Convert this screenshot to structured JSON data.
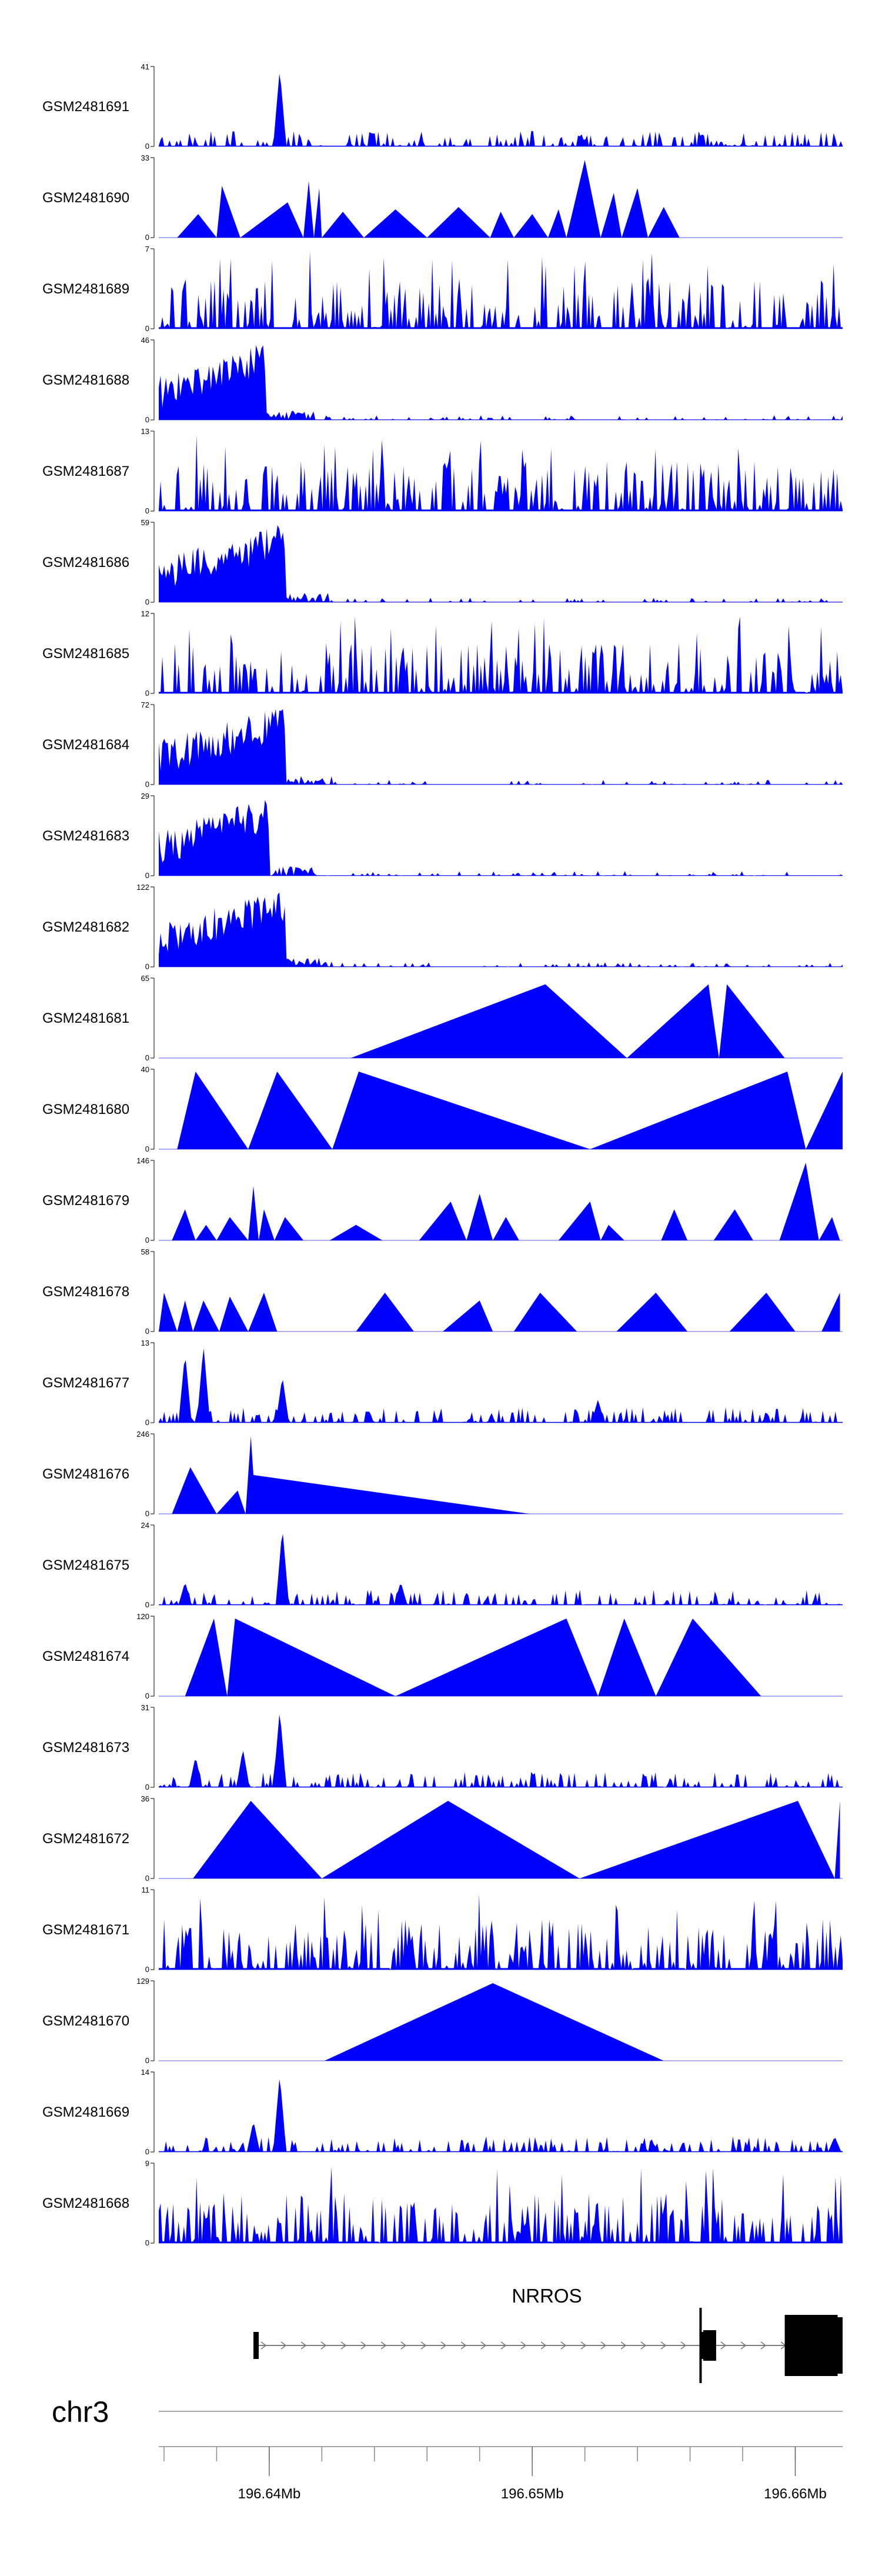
{
  "chart_data": {
    "type": "area",
    "title": "",
    "chromosome": "chr3",
    "xlim_mb": [
      196.6358,
      196.6618
    ],
    "fill_color": "#0000ff",
    "tracks": [
      {
        "name": "GSM2481691",
        "ymax": 41,
        "ymin": 0,
        "style": "sparse",
        "peaks": [
          [
            196.6404,
            1.0
          ]
        ]
      },
      {
        "name": "GSM2481690",
        "ymax": 33,
        "ymin": 0,
        "style": "triangles",
        "points": [
          [
            196.6365,
            0
          ],
          [
            196.6373,
            10
          ],
          [
            196.638,
            0
          ],
          [
            196.6382,
            22
          ],
          [
            196.6389,
            0
          ],
          [
            196.6407,
            15
          ],
          [
            196.6413,
            0
          ],
          [
            196.6415,
            24
          ],
          [
            196.6417,
            0
          ],
          [
            196.6419,
            21
          ],
          [
            196.642,
            0
          ],
          [
            196.6428,
            11
          ],
          [
            196.6436,
            0
          ],
          [
            196.6448,
            12
          ],
          [
            196.646,
            0
          ],
          [
            196.6472,
            13
          ],
          [
            196.6484,
            0
          ],
          [
            196.6488,
            11
          ],
          [
            196.6493,
            0
          ],
          [
            196.65,
            10
          ],
          [
            196.6506,
            0
          ],
          [
            196.651,
            12
          ],
          [
            196.6513,
            0
          ],
          [
            196.652,
            33
          ],
          [
            196.6526,
            0
          ],
          [
            196.6531,
            19
          ],
          [
            196.6534,
            0
          ],
          [
            196.654,
            21
          ],
          [
            196.6544,
            0
          ],
          [
            196.655,
            13
          ],
          [
            196.6556,
            0
          ],
          [
            196.6577,
            0
          ]
        ]
      },
      {
        "name": "GSM2481689",
        "ymax": 7,
        "ymin": 0,
        "style": "spiky"
      },
      {
        "name": "GSM2481688",
        "ymax": 46,
        "ymin": 0,
        "style": "dense-left",
        "peaks": [
          [
            196.6395,
            1.0
          ]
        ]
      },
      {
        "name": "GSM2481687",
        "ymax": 13,
        "ymin": 0,
        "style": "spiky"
      },
      {
        "name": "GSM2481686",
        "ymax": 59,
        "ymin": 0,
        "style": "dense-left",
        "peaks": [
          [
            196.6402,
            1.0
          ]
        ]
      },
      {
        "name": "GSM2481685",
        "ymax": 12,
        "ymin": 0,
        "style": "spiky"
      },
      {
        "name": "GSM2481684",
        "ymax": 72,
        "ymin": 0,
        "style": "dense-left",
        "peaks": [
          [
            196.6402,
            1.0
          ]
        ]
      },
      {
        "name": "GSM2481683",
        "ymax": 29,
        "ymin": 0,
        "style": "dense-left",
        "peaks": [
          [
            196.6396,
            0.8
          ]
        ]
      },
      {
        "name": "GSM2481682",
        "ymax": 122,
        "ymin": 0,
        "style": "dense-left",
        "peaks": [
          [
            196.6402,
            1.0
          ]
        ]
      },
      {
        "name": "GSM2481681",
        "ymax": 65,
        "ymin": 0,
        "style": "triangles",
        "points": [
          [
            196.6431,
            0
          ],
          [
            196.6505,
            0.95
          ],
          [
            196.6536,
            0
          ],
          [
            196.6567,
            0.95
          ],
          [
            196.6571,
            0
          ],
          [
            196.6574,
            0.95
          ],
          [
            196.6596,
            0
          ]
        ]
      },
      {
        "name": "GSM2481680",
        "ymax": 40,
        "ymin": 0,
        "style": "triangles",
        "points": [
          [
            196.6365,
            0
          ],
          [
            196.6372,
            1
          ],
          [
            196.6392,
            0
          ],
          [
            196.6403,
            1
          ],
          [
            196.6424,
            0
          ],
          [
            196.6434,
            1
          ],
          [
            196.6522,
            0
          ],
          [
            196.6597,
            1
          ],
          [
            196.6604,
            0
          ],
          [
            196.6618,
            1
          ]
        ]
      },
      {
        "name": "GSM2481679",
        "ymax": 146,
        "ymin": 0,
        "style": "triangles",
        "points": [
          [
            196.6363,
            0
          ],
          [
            196.6368,
            0.4
          ],
          [
            196.6372,
            0
          ],
          [
            196.6376,
            0.2
          ],
          [
            196.638,
            0
          ],
          [
            196.6385,
            0.3
          ],
          [
            196.6392,
            0
          ],
          [
            196.6394,
            0.7
          ],
          [
            196.6396,
            0
          ],
          [
            196.6398,
            0.4
          ],
          [
            196.6402,
            0
          ],
          [
            196.6406,
            0.3
          ],
          [
            196.6413,
            0
          ],
          [
            196.6423,
            0
          ],
          [
            196.6433,
            0.2
          ],
          [
            196.6443,
            0
          ],
          [
            196.6457,
            0
          ],
          [
            196.6469,
            0.5
          ],
          [
            196.6475,
            0
          ],
          [
            196.648,
            0.6
          ],
          [
            196.6485,
            0
          ],
          [
            196.649,
            0.3
          ],
          [
            196.6495,
            0
          ],
          [
            196.651,
            0
          ],
          [
            196.6522,
            0.5
          ],
          [
            196.6526,
            0
          ],
          [
            196.6529,
            0.2
          ],
          [
            196.6535,
            0
          ],
          [
            196.6549,
            0
          ],
          [
            196.6554,
            0.4
          ],
          [
            196.6559,
            0
          ],
          [
            196.6569,
            0
          ],
          [
            196.6577,
            0.4
          ],
          [
            196.6584,
            0
          ],
          [
            196.6594,
            0
          ],
          [
            196.6604,
            1.0
          ],
          [
            196.6609,
            0
          ],
          [
            196.6614,
            0.3
          ],
          [
            196.6617,
            0
          ]
        ]
      },
      {
        "name": "GSM2481678",
        "ymax": 58,
        "ymin": 0,
        "style": "triangles",
        "points": [
          [
            196.6358,
            0
          ],
          [
            196.636,
            0.5
          ],
          [
            196.6365,
            0
          ],
          [
            196.6368,
            0.4
          ],
          [
            196.6371,
            0
          ],
          [
            196.6375,
            0.4
          ],
          [
            196.6381,
            0
          ],
          [
            196.6385,
            0.45
          ],
          [
            196.6392,
            0
          ],
          [
            196.6398,
            0.5
          ],
          [
            196.6403,
            0
          ],
          [
            196.6414,
            0
          ],
          [
            196.6433,
            0
          ],
          [
            196.6444,
            0.5
          ],
          [
            196.6455,
            0
          ],
          [
            196.6466,
            0
          ],
          [
            196.648,
            0.4
          ],
          [
            196.6485,
            0
          ],
          [
            196.6493,
            0
          ],
          [
            196.6503,
            0.5
          ],
          [
            196.6517,
            0
          ],
          [
            196.6532,
            0
          ],
          [
            196.6547,
            0.5
          ],
          [
            196.6559,
            0
          ],
          [
            196.6575,
            0
          ],
          [
            196.6589,
            0.5
          ],
          [
            196.66,
            0
          ],
          [
            196.661,
            0
          ],
          [
            196.6617,
            0.5
          ]
        ]
      },
      {
        "name": "GSM2481677",
        "ymax": 13,
        "ymin": 0,
        "style": "sparse",
        "peaks": [
          [
            196.6368,
            0.9
          ],
          [
            196.6375,
            1.0
          ],
          [
            196.6405,
            0.6
          ],
          [
            196.6525,
            0.3
          ]
        ]
      },
      {
        "name": "GSM2481676",
        "ymax": 246,
        "ymin": 0,
        "style": "triangles",
        "points": [
          [
            196.6363,
            0
          ],
          [
            196.637,
            0.6
          ],
          [
            196.638,
            0
          ],
          [
            196.6388,
            0.3
          ],
          [
            196.6391,
            0
          ],
          [
            196.6393,
            1.0
          ],
          [
            196.6394,
            0.5
          ],
          [
            196.6499,
            0
          ]
        ]
      },
      {
        "name": "GSM2481675",
        "ymax": 24,
        "ymin": 0,
        "style": "sparse",
        "peaks": [
          [
            196.6368,
            0.3
          ],
          [
            196.6405,
            1.0
          ],
          [
            196.645,
            0.3
          ]
        ]
      },
      {
        "name": "GSM2481674",
        "ymax": 120,
        "ymin": 0,
        "style": "triangles",
        "points": [
          [
            196.6368,
            0
          ],
          [
            196.6379,
            1
          ],
          [
            196.6384,
            0
          ],
          [
            196.6387,
            1
          ],
          [
            196.6448,
            0
          ],
          [
            196.6513,
            1
          ],
          [
            196.6525,
            0
          ],
          [
            196.6535,
            1
          ],
          [
            196.6547,
            0
          ],
          [
            196.6561,
            1
          ],
          [
            196.6587,
            0
          ]
        ]
      },
      {
        "name": "GSM2481673",
        "ymax": 31,
        "ymin": 0,
        "style": "sparse",
        "peaks": [
          [
            196.6372,
            0.4
          ],
          [
            196.639,
            0.5
          ],
          [
            196.6404,
            1.0
          ]
        ]
      },
      {
        "name": "GSM2481672",
        "ymax": 36,
        "ymin": 0,
        "style": "triangles",
        "points": [
          [
            196.6371,
            0
          ],
          [
            196.6393,
            1
          ],
          [
            196.642,
            0
          ],
          [
            196.6468,
            1
          ],
          [
            196.6518,
            0
          ],
          [
            196.6601,
            1
          ],
          [
            196.6615,
            0
          ],
          [
            196.6617,
            1
          ]
        ]
      },
      {
        "name": "GSM2481671",
        "ymax": 11,
        "ymin": 0,
        "style": "spiky"
      },
      {
        "name": "GSM2481670",
        "ymax": 129,
        "ymin": 0,
        "style": "triangles",
        "points": [
          [
            196.6421,
            0
          ],
          [
            196.6485,
            1
          ],
          [
            196.655,
            0
          ]
        ]
      },
      {
        "name": "GSM2481669",
        "ymax": 14,
        "ymin": 0,
        "style": "sparse",
        "peaks": [
          [
            196.6404,
            1.0
          ],
          [
            196.6394,
            0.4
          ],
          [
            196.6615,
            0.2
          ]
        ]
      },
      {
        "name": "GSM2481668",
        "ymax": 9,
        "ymin": 0,
        "style": "spiky"
      }
    ],
    "gene": {
      "name": "NRROS",
      "start_mb": 196.6394,
      "end_mb": 196.6618,
      "strand": "+",
      "exons": [
        [
          196.6394,
          196.6396
        ],
        [
          196.6564,
          196.6569
        ],
        [
          196.6598,
          196.6618
        ]
      ]
    },
    "x_axis": {
      "tick_labels": [
        "196.64Mb",
        "196.65Mb",
        "196.66Mb"
      ],
      "tick_values_mb": [
        196.64,
        196.65,
        196.66
      ],
      "minor_tick_step_mb": 0.002
    }
  }
}
